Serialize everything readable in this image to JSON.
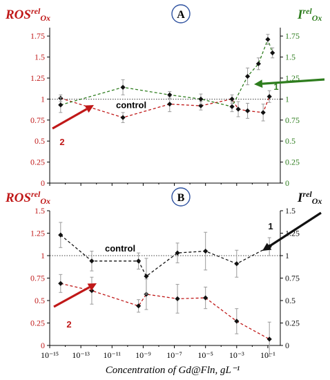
{
  "colors": {
    "ros": "#c01818",
    "lum": "#2e7d1e",
    "black": "#111111",
    "err": "#9a9a9a",
    "circle": "#2b4f9e"
  },
  "x_axis": {
    "label": "Concentration of Gd@Fln, gL⁻¹",
    "scale": "log",
    "tick_labels": [
      "10⁻¹⁵",
      "10⁻¹³",
      "10⁻¹¹",
      "10⁻⁹",
      "10⁻⁷",
      "10⁻⁵",
      "10⁻³",
      "10⁻¹"
    ]
  },
  "chart_data": [
    {
      "type": "line",
      "panel_label": "A",
      "left_axis": {
        "label_main": "ROS",
        "label_sup": "rel",
        "label_sub": "Ox",
        "ylim": [
          0,
          1.85
        ],
        "tick_labels": [
          "0",
          "0.25",
          "0.5",
          "0.75",
          "1",
          "1.25",
          "1.5",
          "1.75"
        ]
      },
      "right_axis": {
        "label_main": "I",
        "label_sup": "rel",
        "label_sub": "Ox",
        "ylim": [
          0,
          1.85
        ],
        "tick_labels": [
          "0",
          "0.25",
          "0.5",
          "0.75",
          "1",
          "1.25",
          "1.5",
          "1.75"
        ]
      },
      "control_text": "control",
      "control_value": 1,
      "series": [
        {
          "color": "ros",
          "points": [
            {
              "x": -14.3,
              "y": 1.01,
              "err": 0.04
            },
            {
              "x": -10.3,
              "y": 0.78,
              "err": 0.06
            },
            {
              "x": -7.3,
              "y": 0.94,
              "err": 0.09
            },
            {
              "x": -5.3,
              "y": 0.92,
              "err": 0.05
            },
            {
              "x": -3.3,
              "y": 1.0,
              "err": 0.05
            },
            {
              "x": -2.9,
              "y": 0.88,
              "err": 0.09
            },
            {
              "x": -2.3,
              "y": 0.86,
              "err": 0.09
            },
            {
              "x": -1.3,
              "y": 0.84,
              "err": 0.1
            },
            {
              "x": -0.9,
              "y": 1.03,
              "err": 0.07
            }
          ]
        },
        {
          "color": "lum",
          "points": [
            {
              "x": -14.3,
              "y": 0.93,
              "err": 0.09
            },
            {
              "x": -10.3,
              "y": 1.14,
              "err": 0.09
            },
            {
              "x": -7.3,
              "y": 1.05,
              "err": 0.04
            },
            {
              "x": -5.3,
              "y": 1.0,
              "err": 0.06
            },
            {
              "x": -3.3,
              "y": 0.91,
              "err": 0.06
            },
            {
              "x": -2.3,
              "y": 1.27,
              "err": 0.1
            },
            {
              "x": -1.6,
              "y": 1.42,
              "err": 0.07
            },
            {
              "x": -1.0,
              "y": 1.71,
              "err": 0.06
            },
            {
              "x": -0.7,
              "y": 1.55,
              "err": 0.06
            }
          ]
        }
      ],
      "annotations": [
        {
          "label": "1",
          "color": "lum"
        },
        {
          "label": "2",
          "color": "ros"
        }
      ]
    },
    {
      "type": "line",
      "panel_label": "B",
      "left_axis": {
        "label_main": "ROS",
        "label_sup": "rel",
        "label_sub": "Ox",
        "ylim": [
          0,
          1.5
        ],
        "tick_labels": [
          "0",
          "0.25",
          "0.5",
          "0.75",
          "1",
          "1.25",
          "1.5"
        ]
      },
      "right_axis": {
        "label_main": "I",
        "label_sup": "rel",
        "label_sub": "Ox",
        "ylim": [
          0,
          1.5
        ],
        "tick_labels": [
          "0",
          "0.25",
          "0.5",
          "0.75",
          "1",
          "1.25",
          "1.5"
        ]
      },
      "control_text": "control",
      "control_value": 1,
      "series": [
        {
          "color": "ros",
          "points": [
            {
              "x": -14.3,
              "y": 0.69,
              "err": 0.1
            },
            {
              "x": -12.3,
              "y": 0.61,
              "err": 0.15
            },
            {
              "x": -9.3,
              "y": 0.44,
              "err": 0.07
            },
            {
              "x": -8.8,
              "y": 0.57,
              "err": 0.17
            },
            {
              "x": -6.8,
              "y": 0.52,
              "err": 0.16
            },
            {
              "x": -5.0,
              "y": 0.53,
              "err": 0.12
            },
            {
              "x": -3.0,
              "y": 0.27,
              "err": 0.14
            },
            {
              "x": -0.9,
              "y": 0.07,
              "err": 0.19
            }
          ]
        },
        {
          "color": "black",
          "points": [
            {
              "x": -14.3,
              "y": 1.23,
              "err": 0.14
            },
            {
              "x": -12.3,
              "y": 0.94,
              "err": 0.11
            },
            {
              "x": -9.3,
              "y": 0.94,
              "err": 0.09
            },
            {
              "x": -8.8,
              "y": 0.77,
              "err": 0.2
            },
            {
              "x": -6.8,
              "y": 1.03,
              "err": 0.11
            },
            {
              "x": -5.0,
              "y": 1.05,
              "err": 0.21
            },
            {
              "x": -3.0,
              "y": 0.91,
              "err": 0.15
            },
            {
              "x": -0.9,
              "y": 1.1,
              "err": 0.1
            }
          ]
        }
      ],
      "annotations": [
        {
          "label": "1",
          "color": "black"
        },
        {
          "label": "2",
          "color": "ros"
        }
      ]
    }
  ]
}
